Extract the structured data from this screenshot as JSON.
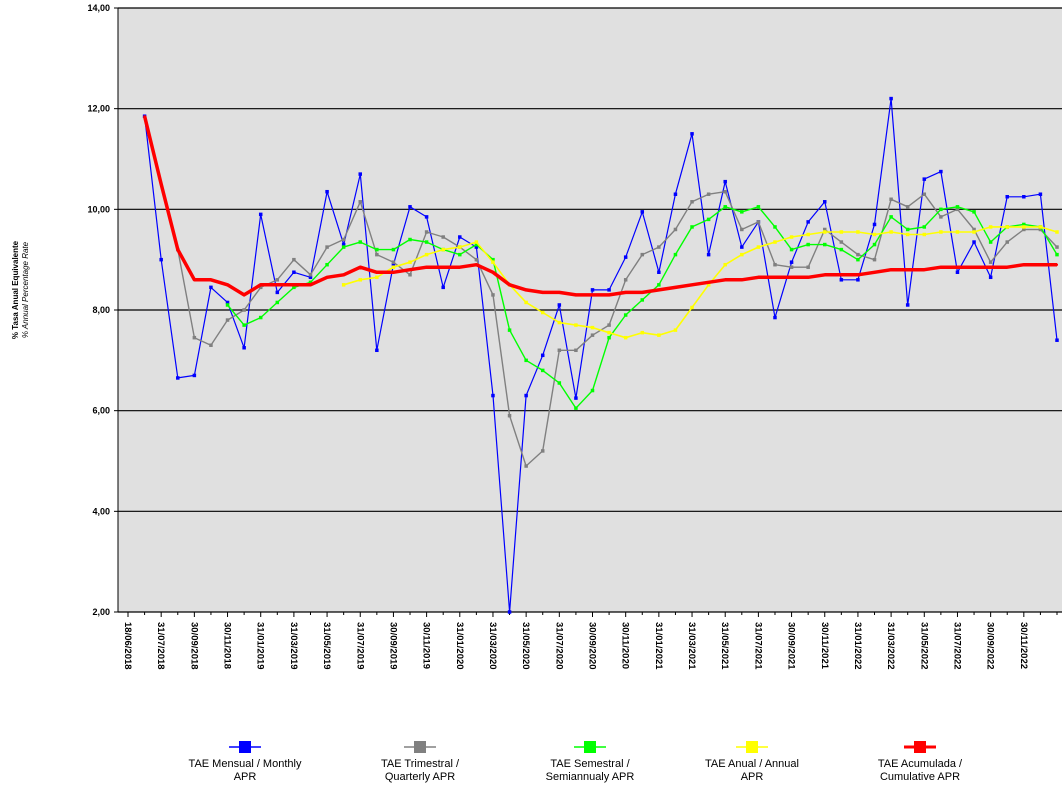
{
  "chart_data": {
    "type": "line",
    "ylabel_lines": [
      "% Tasa Anual Equivalente",
      "% Annual Percentage Rate"
    ],
    "categories": [
      "18/06/2018",
      null,
      "31/07/2018",
      null,
      "30/09/2018",
      null,
      "30/11/2018",
      null,
      "31/01/2019",
      null,
      "31/03/2019",
      null,
      "31/05/2019",
      null,
      "31/07/2019",
      null,
      "30/09/2019",
      null,
      "30/11/2019",
      null,
      "31/01/2020",
      null,
      "31/03/2020",
      null,
      "31/05/2020",
      null,
      "31/07/2020",
      null,
      "30/09/2020",
      null,
      "30/11/2020",
      null,
      "31/01/2021",
      null,
      "31/03/2021",
      null,
      "31/05/2021",
      null,
      "31/07/2021",
      null,
      "30/09/2021",
      null,
      "30/11/2021",
      null,
      "31/01/2022",
      null,
      "31/03/2022",
      null,
      "31/05/2022",
      null,
      "31/07/2022",
      null,
      "30/09/2022",
      null,
      "30/11/2022",
      null,
      null
    ],
    "series": [
      {
        "name": "TAE Mensual /  Monthly\nAPR",
        "color": "#0000ff",
        "width": 1.2,
        "markers": true,
        "values": [
          null,
          11.85,
          9.0,
          6.65,
          6.7,
          8.45,
          8.15,
          7.25,
          9.9,
          8.35,
          8.75,
          8.65,
          10.35,
          9.3,
          10.7,
          7.2,
          8.9,
          10.05,
          9.85,
          8.45,
          9.45,
          9.25,
          6.3,
          2.0,
          6.3,
          7.1,
          8.1,
          6.25,
          8.4,
          8.4,
          9.05,
          9.95,
          8.75,
          10.3,
          11.5,
          9.1,
          10.55,
          9.25,
          9.75,
          7.85,
          8.95,
          9.75,
          10.15,
          8.6,
          8.6,
          9.7,
          12.2,
          8.1,
          10.6,
          10.75,
          8.75,
          9.35,
          8.65,
          10.25,
          10.25,
          10.3,
          7.4
        ]
      },
      {
        "name": "TAE Trimestral /\nQuarterly APR",
        "color": "#808080",
        "width": 1.4,
        "markers": true,
        "values": [
          null,
          null,
          null,
          9.2,
          7.45,
          7.3,
          7.8,
          8.0,
          8.45,
          8.6,
          9.0,
          8.7,
          9.25,
          9.4,
          10.15,
          9.1,
          8.95,
          8.7,
          9.55,
          9.45,
          9.25,
          9.0,
          8.3,
          5.9,
          4.9,
          5.2,
          7.2,
          7.2,
          7.5,
          7.7,
          8.6,
          9.1,
          9.25,
          9.6,
          10.15,
          10.3,
          10.35,
          9.6,
          9.75,
          8.9,
          8.85,
          8.85,
          9.6,
          9.35,
          9.1,
          9.0,
          10.2,
          10.05,
          10.3,
          9.85,
          10.0,
          9.6,
          8.95,
          9.35,
          9.6,
          9.6,
          9.25
        ]
      },
      {
        "name": "TAE Semestral /\nSemiannualy APR",
        "color": "#00ff00",
        "width": 1.4,
        "markers": true,
        "values": [
          null,
          null,
          null,
          null,
          null,
          null,
          8.1,
          7.7,
          7.85,
          8.15,
          8.45,
          8.55,
          8.9,
          9.25,
          9.35,
          9.2,
          9.2,
          9.4,
          9.35,
          9.2,
          9.1,
          9.3,
          9.0,
          7.6,
          7.0,
          6.8,
          6.55,
          6.05,
          6.4,
          7.45,
          7.9,
          8.2,
          8.5,
          9.1,
          9.65,
          9.8,
          10.05,
          9.95,
          10.05,
          9.65,
          9.2,
          9.3,
          9.3,
          9.2,
          9.0,
          9.3,
          9.85,
          9.6,
          9.65,
          10.0,
          10.05,
          9.95,
          9.35,
          9.65,
          9.7,
          9.65,
          9.1
        ]
      },
      {
        "name": "TAE Anual / Annual\nAPR",
        "color": "#ffff00",
        "width": 1.6,
        "markers": true,
        "values": [
          null,
          null,
          null,
          null,
          null,
          null,
          null,
          null,
          null,
          null,
          null,
          null,
          null,
          8.5,
          8.6,
          8.65,
          8.85,
          8.95,
          9.1,
          9.2,
          9.25,
          9.35,
          8.95,
          8.5,
          8.15,
          7.95,
          7.75,
          7.7,
          7.65,
          7.55,
          7.45,
          7.55,
          7.5,
          7.6,
          8.05,
          8.5,
          8.9,
          9.1,
          9.25,
          9.35,
          9.45,
          9.5,
          9.55,
          9.55,
          9.55,
          9.5,
          9.55,
          9.5,
          9.5,
          9.55,
          9.55,
          9.55,
          9.65,
          9.65,
          9.65,
          9.65,
          9.55
        ]
      },
      {
        "name": "TAE Acumulada /\nCumulative APR",
        "color": "#ff0000",
        "width": 3.5,
        "markers": false,
        "values": [
          null,
          11.85,
          10.5,
          9.2,
          8.6,
          8.6,
          8.5,
          8.3,
          8.5,
          8.5,
          8.5,
          8.5,
          8.65,
          8.7,
          8.85,
          8.75,
          8.75,
          8.8,
          8.85,
          8.85,
          8.85,
          8.9,
          8.75,
          8.5,
          8.4,
          8.35,
          8.35,
          8.3,
          8.3,
          8.3,
          8.35,
          8.35,
          8.4,
          8.45,
          8.5,
          8.55,
          8.6,
          8.6,
          8.65,
          8.65,
          8.65,
          8.65,
          8.7,
          8.7,
          8.7,
          8.75,
          8.8,
          8.8,
          8.8,
          8.85,
          8.85,
          8.85,
          8.85,
          8.85,
          8.9,
          8.9,
          8.9
        ]
      }
    ],
    "ylim": [
      2,
      14
    ],
    "yticks": [
      {
        "value": 2,
        "label": "2,00"
      },
      {
        "value": 4,
        "label": "4,00"
      },
      {
        "value": 6,
        "label": "6,00"
      },
      {
        "value": 8,
        "label": "8,00"
      },
      {
        "value": 10,
        "label": "10,00"
      },
      {
        "value": 12,
        "label": "12,00"
      },
      {
        "value": 14,
        "label": "14,00"
      }
    ],
    "grid": true,
    "plot_background": "#e0e0e0",
    "legend": "bottom"
  }
}
